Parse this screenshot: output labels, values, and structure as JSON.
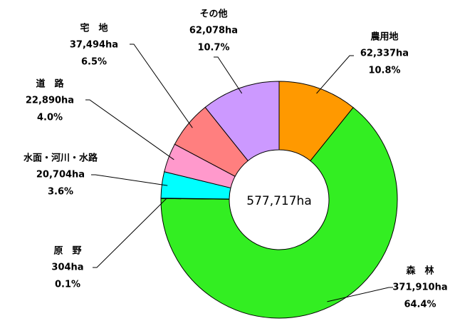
{
  "chart_data": {
    "type": "donut",
    "center_label": "577,717ha",
    "categories": [
      "農用地",
      "森　林",
      "原　野",
      "水面・河川・水路",
      "道　路",
      "宅　地",
      "その他"
    ],
    "values": [
      62337,
      371910,
      304,
      20704,
      22890,
      37494,
      62078
    ],
    "value_labels": [
      "62,337ha",
      "371,910ha",
      "304ha",
      "20,704ha",
      "22,890ha",
      "37,494ha",
      "62,078ha"
    ],
    "percent_labels": [
      "10.8%",
      "64.4%",
      "0.1%",
      "3.6%",
      "4.0%",
      "6.5%",
      "10.7%"
    ],
    "colors": [
      "#ff9900",
      "#33ee22",
      "#ffff66",
      "#00ffff",
      "#ff99cc",
      "#ff7f7f",
      "#cc99ff"
    ]
  }
}
